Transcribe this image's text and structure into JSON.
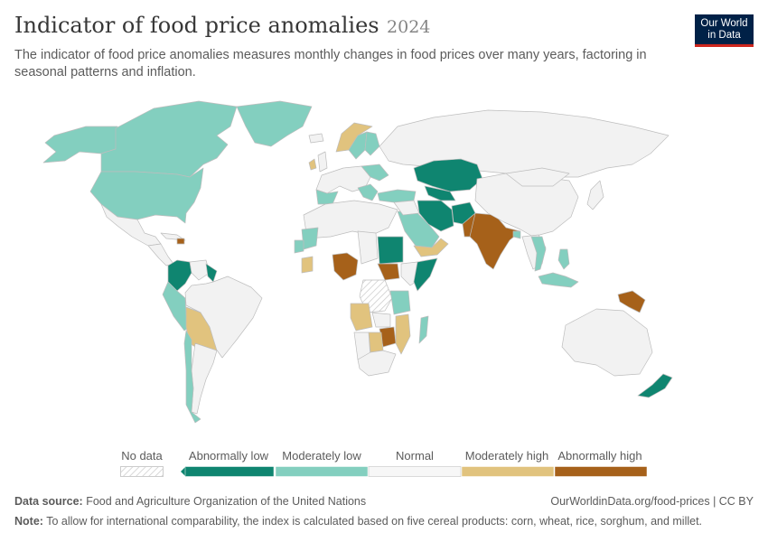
{
  "header": {
    "title": "Indicator of food price anomalies",
    "year": "2024",
    "subtitle": "The indicator of food price anomalies measures monthly changes in food prices over many years, factoring in seasonal patterns and inflation."
  },
  "logo": {
    "line1": "Our World",
    "line2": "in Data"
  },
  "legend": {
    "no_data": "No data",
    "categories": [
      {
        "label": "Abnormally low",
        "color": "#0f8570"
      },
      {
        "label": "Moderately low",
        "color": "#83cfbf"
      },
      {
        "label": "Normal",
        "color": "#f7f7f7"
      },
      {
        "label": "Moderately high",
        "color": "#e1c37e"
      },
      {
        "label": "Abnormally high",
        "color": "#a6611a"
      }
    ]
  },
  "colors": {
    "abnormally_low": "#0f8570",
    "moderately_low": "#83cfbf",
    "normal": "#f2f2f2",
    "moderately_high": "#e1c37e",
    "abnormally_high": "#a6611a",
    "no_data_stroke": "#cccccc"
  },
  "countries": {
    "abnormally_low": [
      "Kazakhstan",
      "Uzbekistan",
      "Afghanistan",
      "Iran",
      "Sudan",
      "Somalia",
      "Colombia",
      "Guyana",
      "New Zealand"
    ],
    "moderately_low": [
      "Alaska (United States)",
      "Canada",
      "Greenland",
      "United States",
      "Sweden",
      "Finland",
      "Turkey",
      "Saudi Arabia",
      "Mali",
      "Senegal",
      "Tanzania",
      "Madagascar",
      "Peru",
      "Chile",
      "Thailand",
      "Philippines",
      "Indonesia",
      "Bangladesh"
    ],
    "moderately_high": [
      "Norway",
      "Ireland",
      "Burkina Faso",
      "Angola",
      "Mozambique",
      "Botswana",
      "Bolivia",
      "Yemen"
    ],
    "abnormally_high": [
      "India",
      "Pakistan",
      "Nigeria",
      "South Sudan",
      "Zimbabwe",
      "Papua New Guinea",
      "Haiti"
    ]
  },
  "footer": {
    "source_label": "Data source:",
    "source_text": "Food and Agriculture Organization of the United Nations",
    "url_text": "OurWorldinData.org/food-prices | CC BY",
    "note_label": "Note:",
    "note_text": "To allow for international comparability, the index is calculated based on five cereal products: corn, wheat, rice, sorghum, and millet."
  }
}
